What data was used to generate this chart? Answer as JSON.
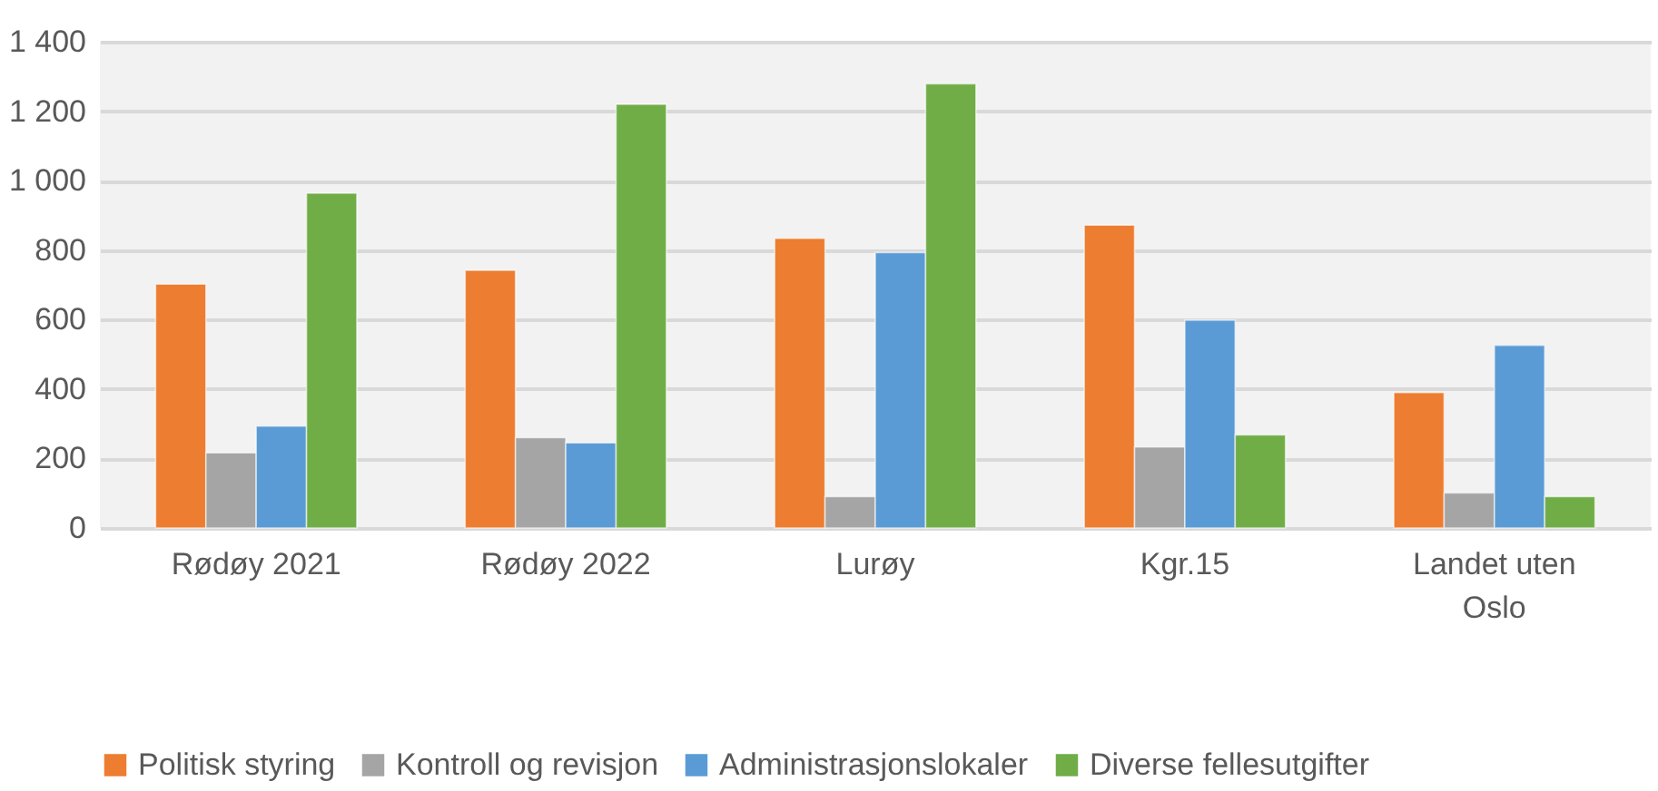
{
  "chart_data": {
    "type": "bar",
    "categories": [
      "Rødøy 2021",
      "Rødøy 2022",
      "Lurøy",
      "Kgr.15",
      "Landet uten Oslo"
    ],
    "series": [
      {
        "name": "Politisk styring",
        "color": "#ed7d31",
        "values": [
          702,
          742,
          834,
          872,
          390
        ]
      },
      {
        "name": "Kontroll og revisjon",
        "color": "#a5a5a5",
        "values": [
          216,
          260,
          90,
          233,
          101
        ]
      },
      {
        "name": "Administrasjonslokaler",
        "color": "#5b9bd5",
        "values": [
          293,
          245,
          793,
          598,
          526
        ]
      },
      {
        "name": "Diverse fellesutgifter",
        "color": "#70ad47",
        "values": [
          964,
          1220,
          1279,
          268,
          90
        ]
      }
    ],
    "ylim": [
      0,
      1400
    ],
    "yticks": [
      0,
      200,
      400,
      600,
      800,
      {
        "value": 1000,
        "label": "1 000"
      },
      {
        "value": 1200,
        "label": "1 200"
      },
      {
        "value": 1400,
        "label": "1 400"
      }
    ],
    "grid": "y",
    "legend": "bottom"
  }
}
